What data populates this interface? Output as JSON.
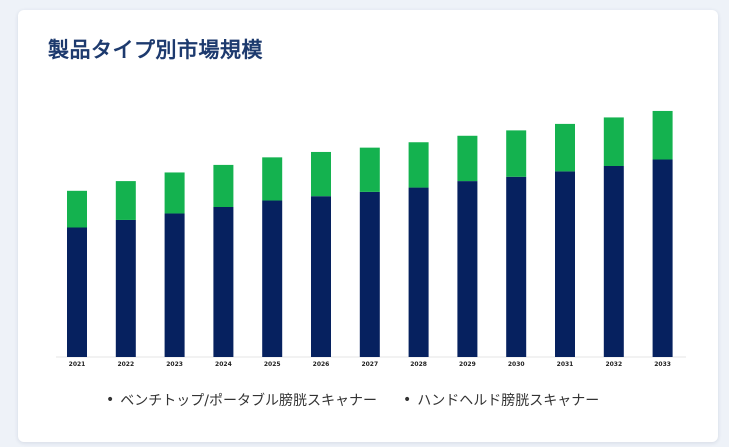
{
  "chart_data": {
    "type": "bar",
    "stacked": true,
    "title": "製品タイプ別市場規模",
    "categories": [
      "2021",
      "2022",
      "2023",
      "2024",
      "2025",
      "2026",
      "2027",
      "2028",
      "2029",
      "2030",
      "2031",
      "2032",
      "2033"
    ],
    "series": [
      {
        "name": "ベンチトップ/ポータブル膀胱スキャナー",
        "color": "#06215f",
        "values": [
          120,
          127,
          133,
          139,
          145,
          149,
          153,
          157,
          163,
          167,
          172,
          177,
          183
        ]
      },
      {
        "name": "ハンドヘルド膀胱スキャナー",
        "color": "#14b24f",
        "values": [
          34,
          36,
          38,
          39,
          40,
          41,
          41,
          42,
          42,
          43,
          44,
          45,
          45
        ]
      }
    ],
    "ylim": [
      0,
      240
    ],
    "grid": false,
    "legend_position": "bottom"
  }
}
